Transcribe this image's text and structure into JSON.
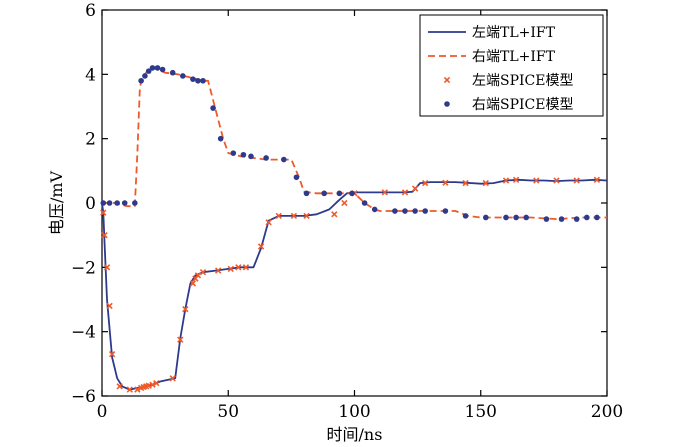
{
  "chart_data": {
    "type": "line",
    "title": "",
    "xlabel": "时间/ns",
    "ylabel": "电压/mV",
    "xlim": [
      0,
      200
    ],
    "ylim": [
      -6,
      6
    ],
    "xticks": [
      0,
      50,
      100,
      150,
      200
    ],
    "yticks": [
      6,
      4,
      2,
      0,
      -2,
      -4,
      -6
    ],
    "grid": false,
    "legend_position": "top-right",
    "colors": {
      "left_line": "#2e3a8c",
      "right_line": "#f05a28",
      "left_marker": "#f05a28",
      "right_marker": "#2e3a8c"
    },
    "series": [
      {
        "name": "左端TL+IFT",
        "style": "solid",
        "x": [
          0,
          0.5,
          1,
          2,
          4,
          6,
          8,
          11,
          14,
          17,
          20,
          23,
          26,
          29,
          31,
          33,
          35,
          37,
          40,
          45,
          50,
          55,
          60,
          63,
          66,
          70,
          75,
          80,
          85,
          90,
          94,
          97,
          100,
          105,
          110,
          115,
          120,
          123,
          126,
          130,
          140,
          150,
          155,
          160,
          165,
          170,
          175,
          180,
          185,
          190,
          195,
          200
        ],
        "y": [
          0,
          -0.3,
          -1.2,
          -3.0,
          -4.8,
          -5.45,
          -5.7,
          -5.8,
          -5.75,
          -5.7,
          -5.65,
          -5.55,
          -5.5,
          -5.45,
          -4.2,
          -3.3,
          -2.5,
          -2.25,
          -2.15,
          -2.1,
          -2.05,
          -2.0,
          -2.0,
          -1.4,
          -0.55,
          -0.4,
          -0.4,
          -0.4,
          -0.35,
          -0.2,
          0.1,
          0.3,
          0.33,
          0.33,
          0.33,
          0.33,
          0.33,
          0.35,
          0.62,
          0.65,
          0.65,
          0.6,
          0.62,
          0.7,
          0.72,
          0.7,
          0.7,
          0.68,
          0.7,
          0.7,
          0.72,
          0.7
        ]
      },
      {
        "name": "右端TL+IFT",
        "style": "dashed",
        "x": [
          0,
          5,
          10,
          13,
          14,
          15,
          16,
          17,
          18,
          20,
          22,
          25,
          30,
          35,
          40,
          42,
          45,
          48,
          50,
          53,
          55,
          60,
          65,
          70,
          75,
          78,
          80,
          85,
          90,
          100,
          102,
          104,
          106,
          108,
          110,
          120,
          125,
          130,
          140,
          145,
          150,
          160,
          170,
          180,
          190,
          200
        ],
        "y": [
          0,
          0,
          -0.1,
          -0.1,
          1.5,
          3.6,
          3.9,
          4.0,
          4.1,
          4.2,
          4.15,
          4.05,
          4.0,
          3.9,
          3.8,
          3.8,
          2.9,
          2.0,
          1.55,
          1.5,
          1.45,
          1.4,
          1.35,
          1.35,
          1.35,
          0.8,
          0.35,
          0.3,
          0.3,
          0.3,
          0.15,
          0.0,
          -0.1,
          -0.2,
          -0.25,
          -0.25,
          -0.25,
          -0.25,
          -0.25,
          -0.4,
          -0.45,
          -0.45,
          -0.45,
          -0.5,
          -0.45,
          -0.45
        ]
      },
      {
        "name": "左端SPICE模型",
        "style": "x-marker",
        "x": [
          0.5,
          1,
          2,
          3,
          4,
          7,
          11,
          14,
          15.5,
          16.5,
          17.5,
          18.5,
          20,
          21.5,
          28,
          31,
          33,
          36,
          37,
          38,
          40,
          46,
          51,
          54,
          57,
          63,
          66,
          70,
          76,
          81,
          92,
          96,
          100,
          112,
          120,
          124,
          128,
          136,
          144,
          152,
          160,
          164,
          172,
          180,
          188,
          196
        ],
        "y": [
          -0.3,
          -1.0,
          -2.0,
          -3.2,
          -4.7,
          -5.7,
          -5.8,
          -5.8,
          -5.75,
          -5.72,
          -5.7,
          -5.68,
          -5.65,
          -5.6,
          -5.45,
          -4.25,
          -3.3,
          -2.5,
          -2.35,
          -2.25,
          -2.15,
          -2.1,
          -2.05,
          -2.0,
          -2.0,
          -1.35,
          -0.6,
          -0.4,
          -0.4,
          -0.4,
          -0.35,
          0.0,
          0.3,
          0.33,
          0.33,
          0.45,
          0.62,
          0.63,
          0.62,
          0.62,
          0.7,
          0.72,
          0.7,
          0.7,
          0.7,
          0.72
        ]
      },
      {
        "name": "右端SPICE模型",
        "style": "dot-marker",
        "x": [
          0.5,
          3,
          6,
          9,
          13,
          15.5,
          17,
          18.5,
          20,
          22,
          24,
          28,
          32,
          36,
          38,
          40,
          44,
          47,
          52,
          56,
          59,
          65,
          72,
          77,
          81,
          88,
          94,
          99,
          104,
          108,
          116,
          120,
          124,
          128,
          136,
          144,
          152,
          160,
          164,
          168,
          176,
          182,
          188,
          192,
          196
        ],
        "y": [
          0.0,
          0.0,
          0.0,
          0.0,
          0.0,
          3.8,
          3.95,
          4.1,
          4.2,
          4.2,
          4.15,
          4.05,
          3.95,
          3.85,
          3.8,
          3.8,
          2.95,
          2.0,
          1.55,
          1.5,
          1.45,
          1.4,
          1.35,
          0.8,
          0.3,
          0.3,
          0.3,
          0.3,
          0.0,
          -0.2,
          -0.25,
          -0.25,
          -0.25,
          -0.25,
          -0.25,
          -0.4,
          -0.45,
          -0.45,
          -0.45,
          -0.45,
          -0.5,
          -0.5,
          -0.5,
          -0.45,
          -0.45
        ]
      }
    ]
  }
}
